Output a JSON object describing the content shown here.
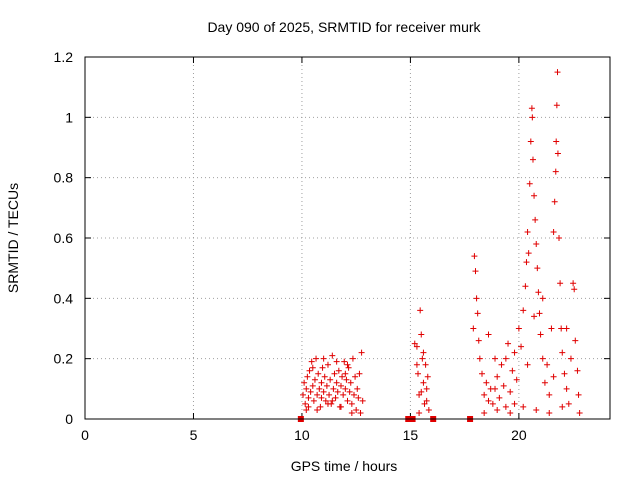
{
  "chart_data": {
    "type": "scatter",
    "title": "Day 090 of 2025, SRMTID for receiver murk",
    "xlabel": "GPS time / hours",
    "ylabel": "SRMTID / TECUs",
    "xlim": [
      0,
      24.2
    ],
    "ylim": [
      0,
      1.2
    ],
    "xticks": [
      0,
      5,
      10,
      15,
      20
    ],
    "yticks": [
      0,
      0.2,
      0.4,
      0.6,
      0.8,
      1,
      1.2
    ],
    "xtick_labels": [
      "0",
      "5",
      "10",
      "15",
      "20"
    ],
    "ytick_labels": [
      "0",
      "0.2",
      "0.4",
      "0.6",
      "0.8",
      "1",
      "1.2"
    ],
    "grid": true,
    "legend": "none",
    "marker": "plus",
    "color": "#e00000",
    "series": [
      {
        "points": [
          [
            10.0,
            0.0
          ],
          [
            10.05,
            0.08
          ],
          [
            10.1,
            0.12
          ],
          [
            10.15,
            0.05
          ],
          [
            10.2,
            0.1
          ],
          [
            10.25,
            0.14
          ],
          [
            10.3,
            0.07
          ],
          [
            10.35,
            0.16
          ],
          [
            10.4,
            0.09
          ],
          [
            10.45,
            0.19
          ],
          [
            10.5,
            0.11
          ],
          [
            10.55,
            0.06
          ],
          [
            10.6,
            0.13
          ],
          [
            10.65,
            0.2
          ],
          [
            10.7,
            0.08
          ],
          [
            10.75,
            0.15
          ],
          [
            10.8,
            0.1
          ],
          [
            10.85,
            0.04
          ],
          [
            10.9,
            0.12
          ],
          [
            10.95,
            0.17
          ],
          [
            11.0,
            0.09
          ],
          [
            11.05,
            0.14
          ],
          [
            11.1,
            0.06
          ],
          [
            11.15,
            0.11
          ],
          [
            11.2,
            0.18
          ],
          [
            11.25,
            0.08
          ],
          [
            11.3,
            0.13
          ],
          [
            11.35,
            0.05
          ],
          [
            11.4,
            0.21
          ],
          [
            11.45,
            0.1
          ],
          [
            11.5,
            0.15
          ],
          [
            11.55,
            0.07
          ],
          [
            11.6,
            0.12
          ],
          [
            11.65,
            0.09
          ],
          [
            11.7,
            0.16
          ],
          [
            11.75,
            0.04
          ],
          [
            11.8,
            0.11
          ],
          [
            11.85,
            0.14
          ],
          [
            11.9,
            0.08
          ],
          [
            11.95,
            0.19
          ],
          [
            12.0,
            0.1
          ],
          [
            12.05,
            0.13
          ],
          [
            12.1,
            0.06
          ],
          [
            12.15,
            0.17
          ],
          [
            12.2,
            0.09
          ],
          [
            12.25,
            0.12
          ],
          [
            12.3,
            0.05
          ],
          [
            12.35,
            0.2
          ],
          [
            12.4,
            0.08
          ],
          [
            12.45,
            0.14
          ],
          [
            12.5,
            0.03
          ],
          [
            12.55,
            0.1
          ],
          [
            12.6,
            0.07
          ],
          [
            12.65,
            0.15
          ],
          [
            12.7,
            0.02
          ],
          [
            12.75,
            0.22
          ],
          [
            12.8,
            0.06
          ],
          [
            10.3,
            0.04
          ],
          [
            10.7,
            0.03
          ],
          [
            11.2,
            0.05
          ],
          [
            11.8,
            0.04
          ],
          [
            12.3,
            0.02
          ],
          [
            10.5,
            0.17
          ],
          [
            11.0,
            0.2
          ],
          [
            11.6,
            0.19
          ],
          [
            12.1,
            0.18
          ],
          [
            10.9,
            0.07
          ],
          [
            11.4,
            0.06
          ],
          [
            12.0,
            0.15
          ],
          [
            10.2,
            0.03
          ],
          [
            15.2,
            0.25
          ],
          [
            15.3,
            0.24
          ],
          [
            15.35,
            0.15
          ],
          [
            15.4,
            0.08
          ],
          [
            15.45,
            0.36
          ],
          [
            15.5,
            0.28
          ],
          [
            15.55,
            0.2
          ],
          [
            15.6,
            0.12
          ],
          [
            15.65,
            0.05
          ],
          [
            15.7,
            0.18
          ],
          [
            15.75,
            0.1
          ],
          [
            15.8,
            0.14
          ],
          [
            15.85,
            0.03
          ],
          [
            15.4,
            0.02
          ],
          [
            15.6,
            0.22
          ],
          [
            15.3,
            0.18
          ],
          [
            15.75,
            0.06
          ],
          [
            15.5,
            0.09
          ],
          [
            17.85,
            0.0
          ],
          [
            17.9,
            0.3
          ],
          [
            17.95,
            0.54
          ],
          [
            18.0,
            0.49
          ],
          [
            18.05,
            0.4
          ],
          [
            18.1,
            0.35
          ],
          [
            18.15,
            0.26
          ],
          [
            18.2,
            0.2
          ],
          [
            18.3,
            0.15
          ],
          [
            18.4,
            0.08
          ],
          [
            18.5,
            0.12
          ],
          [
            18.6,
            0.28
          ],
          [
            18.7,
            0.1
          ],
          [
            18.8,
            0.05
          ],
          [
            18.9,
            0.2
          ],
          [
            19.0,
            0.14
          ],
          [
            19.1,
            0.07
          ],
          [
            19.2,
            0.18
          ],
          [
            19.3,
            0.11
          ],
          [
            19.4,
            0.04
          ],
          [
            19.5,
            0.25
          ],
          [
            19.6,
            0.09
          ],
          [
            19.7,
            0.16
          ],
          [
            19.8,
            0.22
          ],
          [
            19.9,
            0.13
          ],
          [
            20.0,
            0.3
          ],
          [
            20.1,
            0.24
          ],
          [
            20.2,
            0.36
          ],
          [
            20.3,
            0.44
          ],
          [
            20.35,
            0.52
          ],
          [
            20.4,
            0.62
          ],
          [
            20.45,
            0.55
          ],
          [
            20.5,
            0.78
          ],
          [
            20.55,
            0.92
          ],
          [
            20.6,
            1.03
          ],
          [
            20.62,
            1.0
          ],
          [
            20.65,
            0.86
          ],
          [
            20.7,
            0.74
          ],
          [
            20.75,
            0.66
          ],
          [
            20.8,
            0.58
          ],
          [
            20.85,
            0.5
          ],
          [
            20.9,
            0.42
          ],
          [
            20.95,
            0.35
          ],
          [
            21.0,
            0.28
          ],
          [
            21.1,
            0.2
          ],
          [
            21.2,
            0.12
          ],
          [
            21.3,
            0.18
          ],
          [
            21.4,
            0.08
          ],
          [
            21.5,
            0.3
          ],
          [
            21.6,
            0.62
          ],
          [
            21.65,
            0.72
          ],
          [
            21.7,
            0.82
          ],
          [
            21.72,
            0.92
          ],
          [
            21.75,
            1.04
          ],
          [
            21.78,
            1.15
          ],
          [
            21.8,
            0.88
          ],
          [
            21.85,
            0.6
          ],
          [
            21.9,
            0.45
          ],
          [
            21.95,
            0.3
          ],
          [
            22.0,
            0.22
          ],
          [
            22.1,
            0.15
          ],
          [
            22.2,
            0.1
          ],
          [
            22.3,
            0.05
          ],
          [
            22.4,
            0.2
          ],
          [
            22.5,
            0.45
          ],
          [
            22.55,
            0.43
          ],
          [
            22.6,
            0.26
          ],
          [
            22.7,
            0.16
          ],
          [
            22.75,
            0.08
          ],
          [
            22.8,
            0.02
          ],
          [
            18.4,
            0.02
          ],
          [
            19.0,
            0.03
          ],
          [
            19.6,
            0.02
          ],
          [
            20.2,
            0.04
          ],
          [
            20.8,
            0.03
          ],
          [
            21.4,
            0.02
          ],
          [
            22.0,
            0.04
          ],
          [
            18.9,
            0.1
          ],
          [
            19.4,
            0.2
          ],
          [
            20.7,
            0.34
          ],
          [
            21.1,
            0.4
          ],
          [
            21.6,
            0.14
          ],
          [
            22.2,
            0.3
          ],
          [
            18.6,
            0.06
          ],
          [
            19.8,
            0.05
          ],
          [
            20.4,
            0.18
          ]
        ]
      }
    ],
    "gap_markers_x": [
      9.95,
      14.9,
      15.0,
      15.1,
      16.05,
      17.75
    ]
  }
}
